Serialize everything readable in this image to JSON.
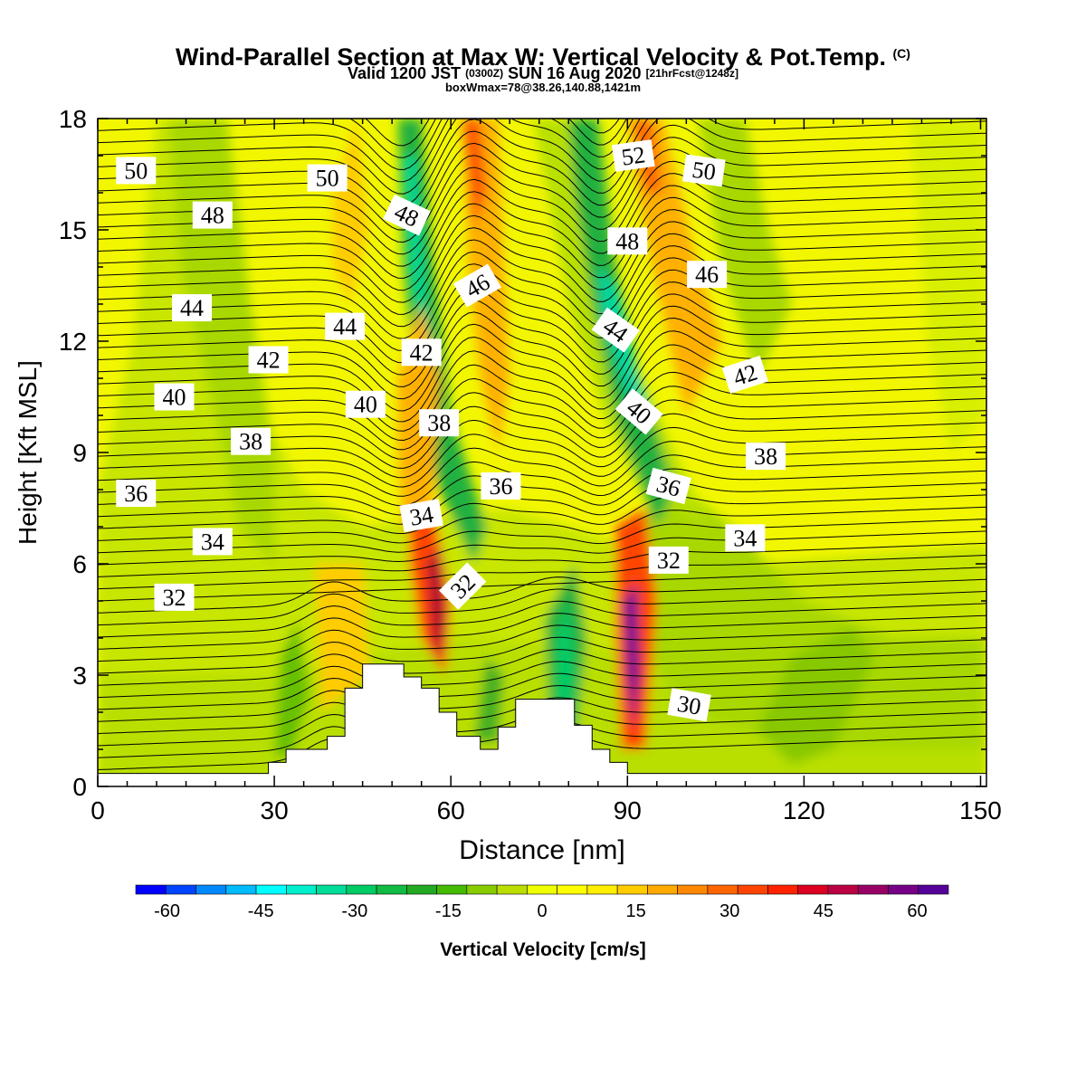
{
  "header": {
    "title": "Wind-Parallel Section at Max W: Vertical Velocity & Pot.Temp.",
    "title_mark": "(C)",
    "subtitle_a": "Valid 1200 JST",
    "subtitle_b": "(0300Z)",
    "subtitle_c": "SUN 16 Aug 2020",
    "subtitle_d": "[21hrFcst@1248z]",
    "subtitle2": "boxWmax=78@38.26,140.88,1421m"
  },
  "chart_data": {
    "type": "heatmap",
    "xlabel": "Distance [nm]",
    "ylabel": "Height [Kft MSL]",
    "xlim": [
      0,
      151
    ],
    "ylim": [
      0,
      18
    ],
    "x_ticks": [
      "0",
      "30",
      "60",
      "90",
      "120",
      "150"
    ],
    "y_ticks": [
      "0",
      "3",
      "6",
      "9",
      "12",
      "15",
      "18"
    ],
    "field": "Vertical Velocity [cm/s]",
    "contour_field": "Potential temperature",
    "contour_labels": [
      {
        "value": "50",
        "x": 6.5,
        "y": 16.6
      },
      {
        "value": "50",
        "x": 39,
        "y": 16.4
      },
      {
        "value": "48",
        "x": 19.5,
        "y": 15.4
      },
      {
        "value": "48",
        "x": 52.5,
        "y": 15.4,
        "rot": 25
      },
      {
        "value": "52",
        "x": 91,
        "y": 17.0,
        "rot": -8
      },
      {
        "value": "50",
        "x": 103,
        "y": 16.6,
        "rot": 8
      },
      {
        "value": "48",
        "x": 90,
        "y": 14.7
      },
      {
        "value": "46",
        "x": 103.5,
        "y": 13.8
      },
      {
        "value": "46",
        "x": 64.5,
        "y": 13.5,
        "rot": -30
      },
      {
        "value": "44",
        "x": 16,
        "y": 12.9
      },
      {
        "value": "44",
        "x": 42,
        "y": 12.4
      },
      {
        "value": "44",
        "x": 88,
        "y": 12.3,
        "rot": 35
      },
      {
        "value": "42",
        "x": 29,
        "y": 11.5
      },
      {
        "value": "42",
        "x": 55,
        "y": 11.7
      },
      {
        "value": "42",
        "x": 110,
        "y": 11.1,
        "rot": -18
      },
      {
        "value": "40",
        "x": 13,
        "y": 10.5
      },
      {
        "value": "40",
        "x": 45.5,
        "y": 10.3
      },
      {
        "value": "40",
        "x": 92,
        "y": 10.1,
        "rot": 40
      },
      {
        "value": "38",
        "x": 26,
        "y": 9.3
      },
      {
        "value": "38",
        "x": 58,
        "y": 9.8
      },
      {
        "value": "38",
        "x": 113.5,
        "y": 8.9
      },
      {
        "value": "36",
        "x": 6.5,
        "y": 7.9
      },
      {
        "value": "36",
        "x": 68.5,
        "y": 8.1
      },
      {
        "value": "36",
        "x": 97,
        "y": 8.1,
        "rot": 15
      },
      {
        "value": "34",
        "x": 19.5,
        "y": 6.6
      },
      {
        "value": "34",
        "x": 55,
        "y": 7.3,
        "rot": -10
      },
      {
        "value": "34",
        "x": 110,
        "y": 6.7
      },
      {
        "value": "32",
        "x": 13,
        "y": 5.1
      },
      {
        "value": "32",
        "x": 62,
        "y": 5.4,
        "rot": -45
      },
      {
        "value": "32",
        "x": 97,
        "y": 6.1
      },
      {
        "value": "30",
        "x": 100.5,
        "y": 2.2,
        "rot": 10
      }
    ],
    "terrain": [
      [
        0,
        0.35
      ],
      [
        29,
        0.35
      ],
      [
        29,
        0.65
      ],
      [
        32,
        0.65
      ],
      [
        32,
        1.0
      ],
      [
        39,
        1.0
      ],
      [
        39,
        1.35
      ],
      [
        42,
        1.35
      ],
      [
        42,
        2.65
      ],
      [
        45,
        2.65
      ],
      [
        45,
        3.3
      ],
      [
        52,
        3.3
      ],
      [
        52,
        2.95
      ],
      [
        55,
        2.95
      ],
      [
        55,
        2.65
      ],
      [
        58,
        2.65
      ],
      [
        58,
        2.0
      ],
      [
        61,
        2.0
      ],
      [
        61,
        1.35
      ],
      [
        65,
        1.35
      ],
      [
        65,
        1.0
      ],
      [
        68,
        1.0
      ],
      [
        68,
        1.6
      ],
      [
        71,
        1.6
      ],
      [
        71,
        2.35
      ],
      [
        81,
        2.35
      ],
      [
        81,
        1.65
      ],
      [
        84,
        1.65
      ],
      [
        84,
        1.0
      ],
      [
        87,
        1.0
      ],
      [
        87,
        0.65
      ],
      [
        90,
        0.65
      ],
      [
        90,
        0.35
      ],
      [
        151,
        0.35
      ]
    ]
  },
  "colorbar": {
    "label": "Vertical Velocity [cm/s]",
    "ticks": [
      "-60",
      "-45",
      "-30",
      "-15",
      "0",
      "15",
      "30",
      "45",
      "60"
    ],
    "colors": [
      "#0000ff",
      "#0044ff",
      "#0088ff",
      "#00bbff",
      "#00ffff",
      "#00eecc",
      "#00dd99",
      "#00cc66",
      "#11bb44",
      "#22aa22",
      "#44bb00",
      "#88cc00",
      "#bbdd00",
      "#eeff00",
      "#ffff00",
      "#ffee00",
      "#ffcc00",
      "#ffaa00",
      "#ff8800",
      "#ff6600",
      "#ff4400",
      "#ff2200",
      "#dd0022",
      "#bb0044",
      "#990066",
      "#770088",
      "#550099"
    ]
  }
}
